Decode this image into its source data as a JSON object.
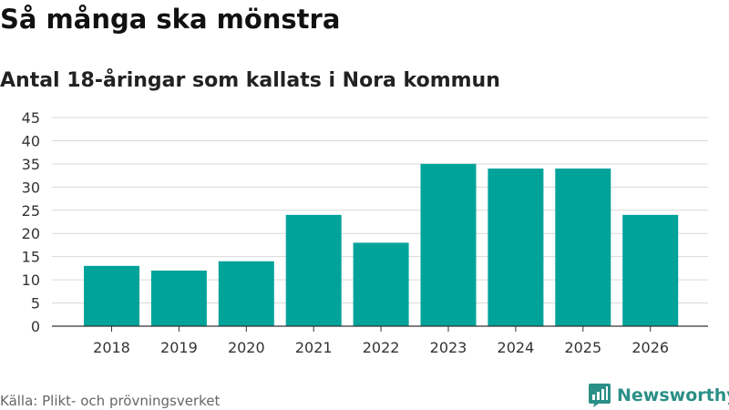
{
  "chart_data": {
    "type": "bar",
    "title": "Så många ska mönstra",
    "subtitle": "Antal 18-åringar som kallats i Nora kommun",
    "categories": [
      "2018",
      "2019",
      "2020",
      "2021",
      "2022",
      "2023",
      "2024",
      "2025",
      "2026"
    ],
    "values": [
      13,
      12,
      14,
      24,
      18,
      35,
      34,
      34,
      24
    ],
    "ylim": [
      0,
      45
    ],
    "yticks": [
      0,
      5,
      10,
      15,
      20,
      25,
      30,
      35,
      40,
      45
    ],
    "xlabel": "",
    "ylabel": "",
    "grid": true,
    "bar_color": "#00a39a"
  },
  "footer": {
    "source": "Källa: Plikt- och prövningsverket",
    "brand": "Newsworthy",
    "brand_color": "#2a8f86"
  }
}
